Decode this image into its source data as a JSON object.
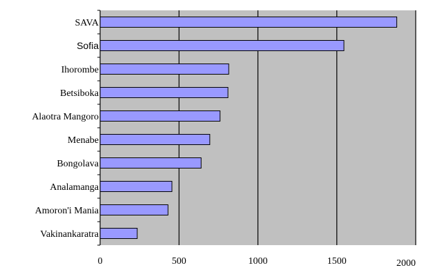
{
  "chart_data": {
    "type": "bar",
    "orientation": "horizontal",
    "categories": [
      "SAVA",
      "Sofia",
      "Ihorombe",
      "Betsiboka",
      "Alaotra Mangoro",
      "Menabe",
      "Bongolava",
      "Analamanga",
      "Amoron'i Mania",
      "Vakinankaratra"
    ],
    "values": [
      1880,
      1545,
      815,
      810,
      760,
      695,
      640,
      455,
      430,
      235
    ],
    "xlim": [
      0,
      2000
    ],
    "x_ticks": [
      "0",
      "500",
      "1000",
      "1500",
      "2000"
    ],
    "title": "",
    "xlabel": "",
    "ylabel": "",
    "grid": "vertical",
    "legend": "none",
    "colors": {
      "plot_background": "#c0c0c0",
      "bar_fill": "#9999ff",
      "bar_stroke": "#000000",
      "gridline": "#000000"
    }
  }
}
